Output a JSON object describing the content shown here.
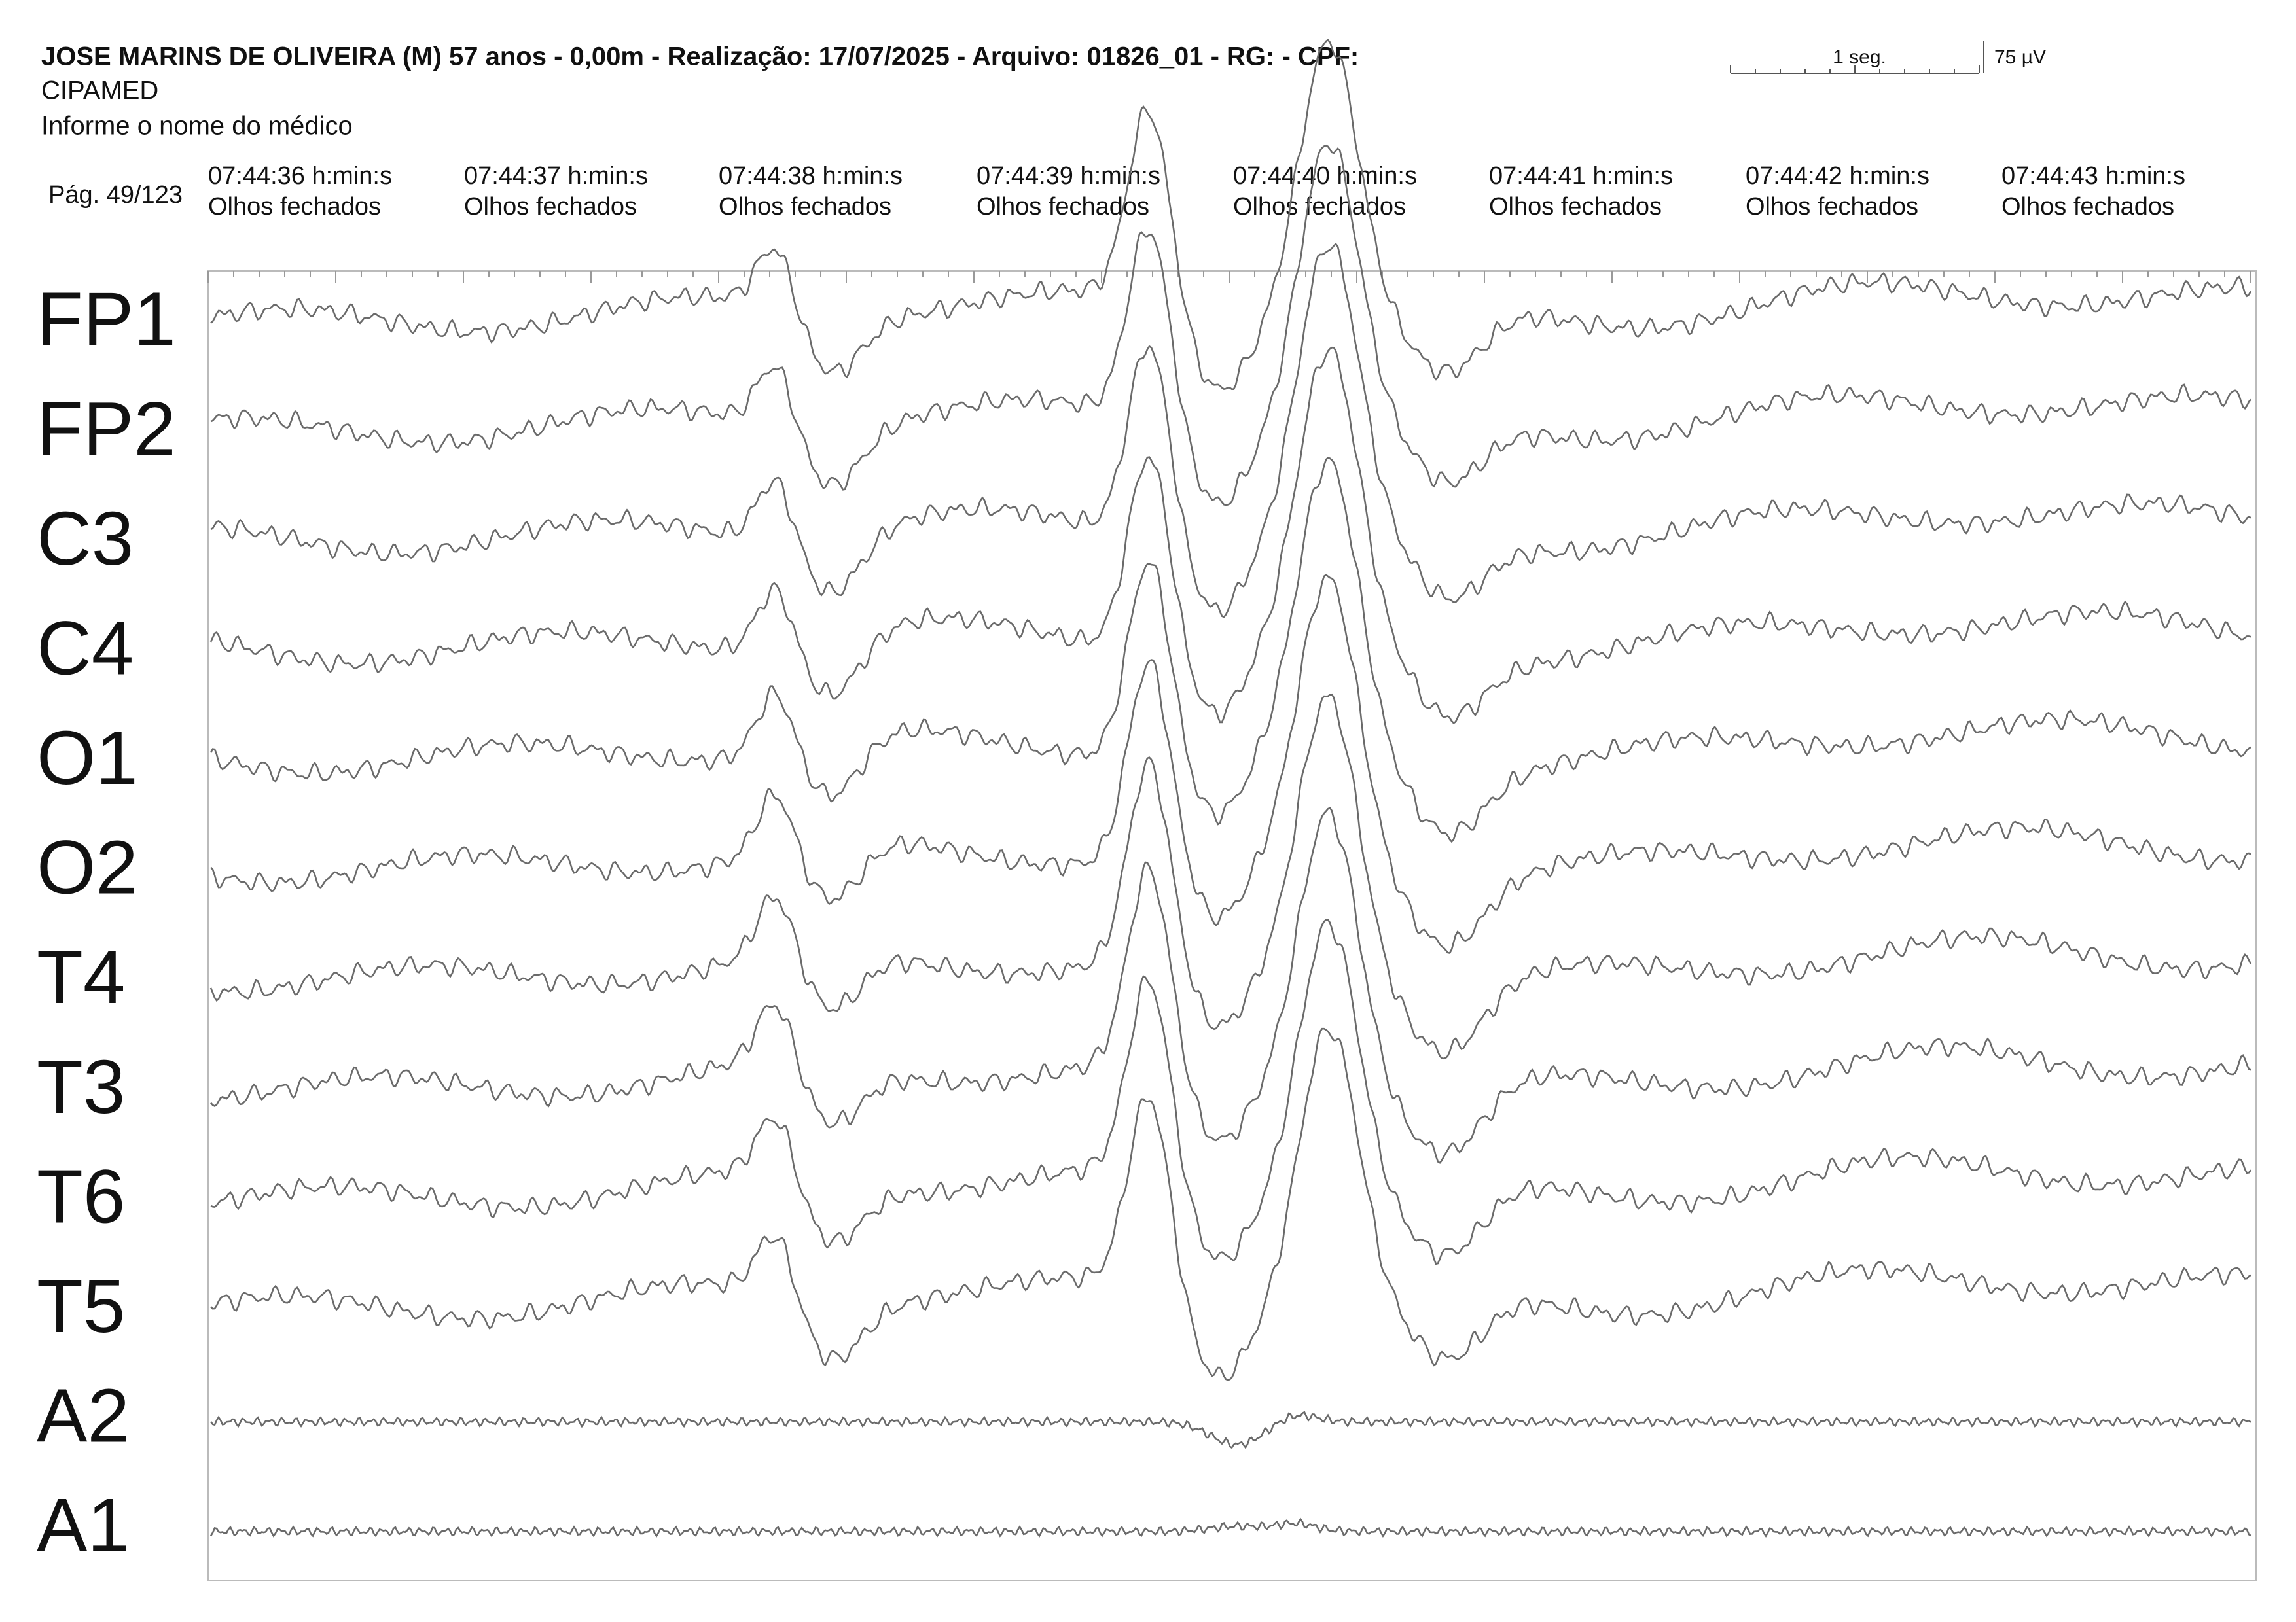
{
  "header": {
    "title": "JOSE MARINS DE OLIVEIRA (M) 57 anos - 0,00m - Realização: 17/07/2025 - Arquivo: 01826_01 - RG:  - CPF:",
    "clinic": "CIPAMED",
    "doctor": "Informe o nome do médico",
    "page": "Pág. 49/123",
    "time_scale": "1 seg.",
    "amplitude_scale": "75 µV"
  },
  "timeline": [
    {
      "time": "07:44:36 h:min:s",
      "state": "Olhos fechados"
    },
    {
      "time": "07:44:37 h:min:s",
      "state": "Olhos fechados"
    },
    {
      "time": "07:44:38 h:min:s",
      "state": "Olhos fechados"
    },
    {
      "time": "07:44:39 h:min:s",
      "state": "Olhos fechados"
    },
    {
      "time": "07:44:40 h:min:s",
      "state": "Olhos fechados"
    },
    {
      "time": "07:44:41 h:min:s",
      "state": "Olhos fechados"
    },
    {
      "time": "07:44:42 h:min:s",
      "state": "Olhos fechados"
    },
    {
      "time": "07:44:43 h:min:s",
      "state": "Olhos fechados"
    }
  ],
  "channels": [
    "FP1",
    "FP2",
    "C3",
    "C4",
    "O1",
    "O2",
    "T4",
    "T3",
    "T6",
    "T5",
    "A2",
    "A1"
  ]
}
